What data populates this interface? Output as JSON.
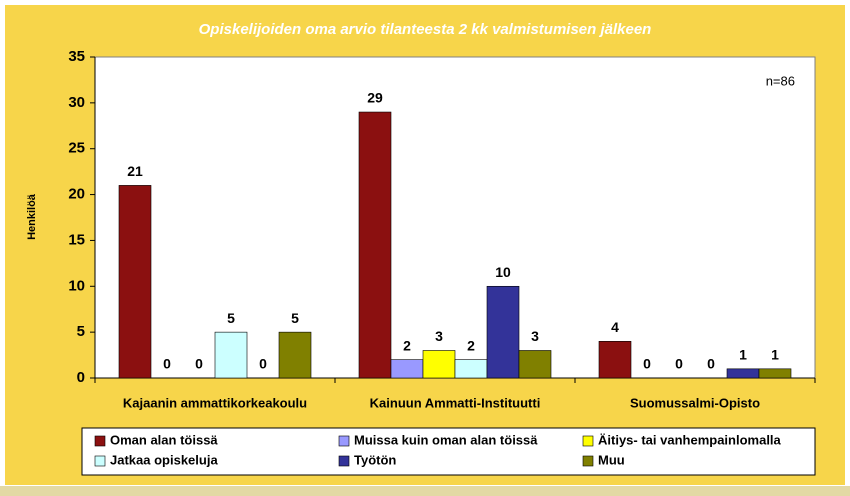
{
  "chart_data": {
    "type": "bar",
    "title": "Opiskelijoiden oma arvio tilanteesta 2 kk valmistumisen jälkeen",
    "y_label": "Henkilöä",
    "annotation": "n=86",
    "categories": [
      "Kajaanin ammattikorkeakoulu",
      "Kainuun Ammatti-Instituutti",
      "Suomussalmi-Opisto"
    ],
    "series": [
      {
        "name": "Oman alan töissä",
        "color": "#8b1010",
        "values": [
          21,
          29,
          4
        ]
      },
      {
        "name": "Muissa kuin oman alan töissä",
        "color": "#9999ff",
        "values": [
          0,
          2,
          0
        ]
      },
      {
        "name": "Äitiys- tai vanhempainlomalla",
        "color": "#ffff00",
        "values": [
          0,
          3,
          0
        ]
      },
      {
        "name": "Jatkaa opiskeluja",
        "color": "#ccffff",
        "values": [
          5,
          2,
          0
        ]
      },
      {
        "name": "Työtön",
        "color": "#333399",
        "values": [
          0,
          10,
          1
        ]
      },
      {
        "name": "Muu",
        "color": "#808000",
        "values": [
          5,
          3,
          1
        ]
      }
    ],
    "ylim": [
      0,
      35
    ],
    "yticks": [
      0,
      5,
      10,
      15,
      20,
      25,
      30,
      35
    ]
  }
}
